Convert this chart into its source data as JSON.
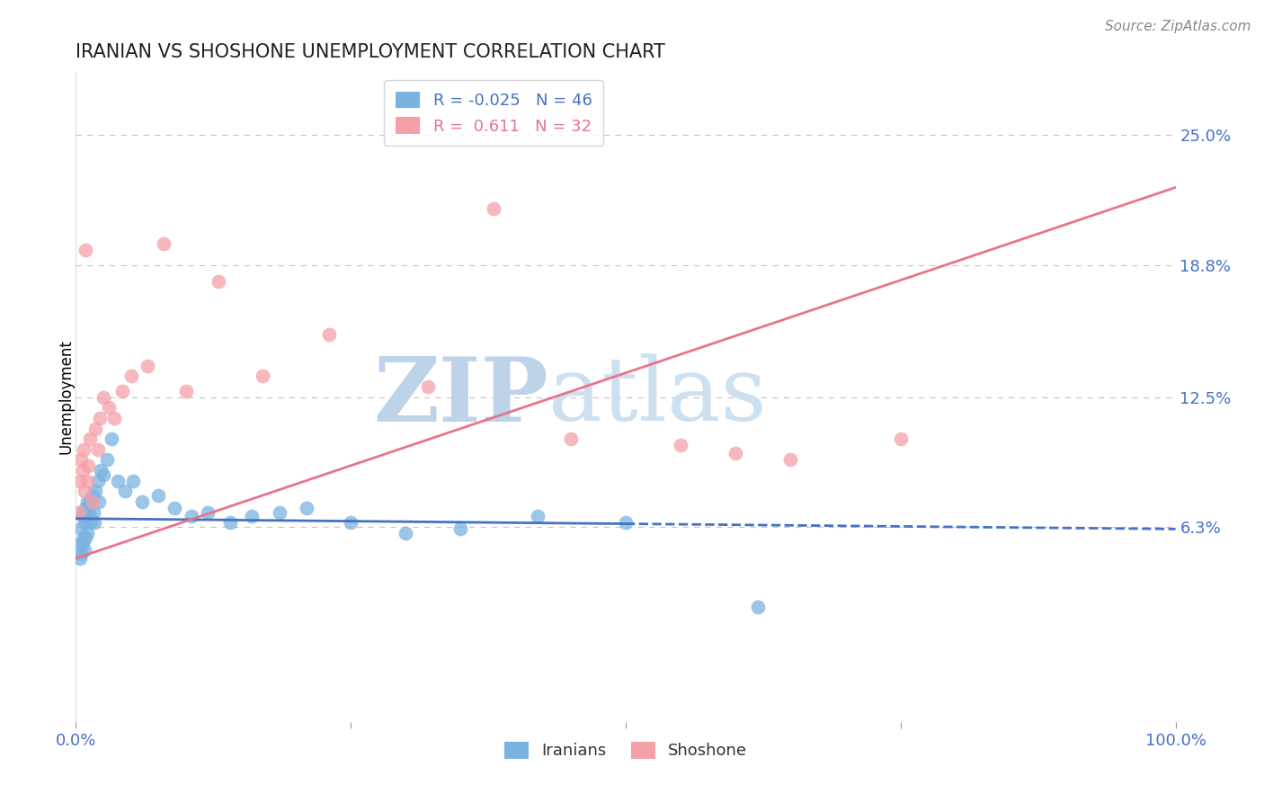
{
  "title": "IRANIAN VS SHOSHONE UNEMPLOYMENT CORRELATION CHART",
  "source": "Source: ZipAtlas.com",
  "ylabel": "Unemployment",
  "xlim": [
    0,
    100
  ],
  "ylim": [
    -3,
    28
  ],
  "yticks": [
    6.3,
    12.5,
    18.8,
    25.0
  ],
  "ytick_labels": [
    "6.3%",
    "12.5%",
    "18.8%",
    "25.0%"
  ],
  "iranians_R": -0.025,
  "iranians_N": 46,
  "shoshone_R": 0.611,
  "shoshone_N": 32,
  "iranians_color": "#7bb3e0",
  "shoshone_color": "#f4a0a8",
  "iranians_line_color": "#4472c4",
  "shoshone_line_color": "#e8748a",
  "grid_color": "#c8c8c8",
  "axis_label_color": "#4472c4",
  "iranians_x": [
    0.3,
    0.4,
    0.5,
    0.5,
    0.6,
    0.6,
    0.7,
    0.7,
    0.8,
    0.8,
    0.9,
    0.9,
    1.0,
    1.0,
    1.1,
    1.2,
    1.3,
    1.4,
    1.5,
    1.6,
    1.7,
    1.8,
    2.0,
    2.1,
    2.3,
    2.5,
    2.8,
    3.2,
    3.8,
    4.5,
    5.2,
    6.0,
    7.5,
    9.0,
    10.5,
    12.0,
    14.0,
    16.0,
    18.5,
    21.0,
    25.0,
    30.0,
    35.0,
    42.0,
    50.0,
    62.0
  ],
  "iranians_y": [
    5.5,
    4.8,
    6.2,
    5.0,
    6.8,
    5.5,
    7.0,
    5.8,
    6.5,
    5.2,
    7.2,
    5.8,
    7.5,
    6.0,
    6.8,
    7.0,
    7.5,
    6.5,
    7.8,
    7.0,
    6.5,
    8.0,
    8.5,
    7.5,
    9.0,
    8.8,
    9.5,
    10.5,
    8.5,
    8.0,
    8.5,
    7.5,
    7.8,
    7.2,
    6.8,
    7.0,
    6.5,
    6.8,
    7.0,
    7.2,
    6.5,
    6.0,
    6.2,
    6.8,
    6.5,
    2.5
  ],
  "shoshone_x": [
    0.3,
    0.4,
    0.5,
    0.6,
    0.7,
    0.8,
    0.9,
    1.0,
    1.1,
    1.3,
    1.5,
    1.8,
    2.0,
    2.2,
    2.5,
    3.0,
    3.5,
    4.2,
    5.0,
    6.5,
    8.0,
    10.0,
    13.0,
    17.0,
    23.0,
    32.0,
    45.0,
    60.0,
    75.0,
    38.0,
    65.0,
    55.0
  ],
  "shoshone_y": [
    7.0,
    8.5,
    9.5,
    9.0,
    10.0,
    8.0,
    19.5,
    8.5,
    9.2,
    10.5,
    7.5,
    11.0,
    10.0,
    11.5,
    12.5,
    12.0,
    11.5,
    12.8,
    13.5,
    14.0,
    19.8,
    12.8,
    18.0,
    13.5,
    15.5,
    13.0,
    10.5,
    9.8,
    10.5,
    21.5,
    9.5,
    10.2
  ],
  "iranians_line_x0": 0,
  "iranians_line_x1": 100,
  "iranians_line_y0": 6.7,
  "iranians_line_y1": 6.2,
  "iranians_solid_x_end": 50,
  "shoshone_line_x0": 0,
  "shoshone_line_x1": 100,
  "shoshone_line_y0": 4.8,
  "shoshone_line_y1": 22.5
}
